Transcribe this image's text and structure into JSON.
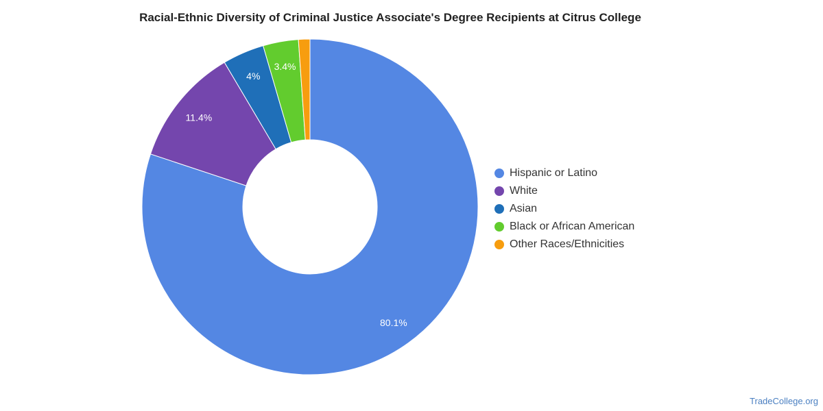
{
  "chart_data": {
    "type": "pie",
    "variant": "donut",
    "title": "Racial-Ethnic Diversity of Criminal Justice Associate's Degree Recipients at Citrus College",
    "categories": [
      "Hispanic or Latino",
      "White",
      "Asian",
      "Black or African American",
      "Other Races/Ethnicities"
    ],
    "values": [
      80.1,
      11.4,
      4.0,
      3.4,
      1.1
    ],
    "data_labels": [
      "80.1%",
      "11.4%",
      "4%",
      "3.4%",
      ""
    ],
    "colors": [
      "#5487e3",
      "#7446ad",
      "#1f6fb8",
      "#62cc2e",
      "#f79d0f"
    ],
    "legend_position": "right"
  },
  "source": "TradeCollege.org"
}
